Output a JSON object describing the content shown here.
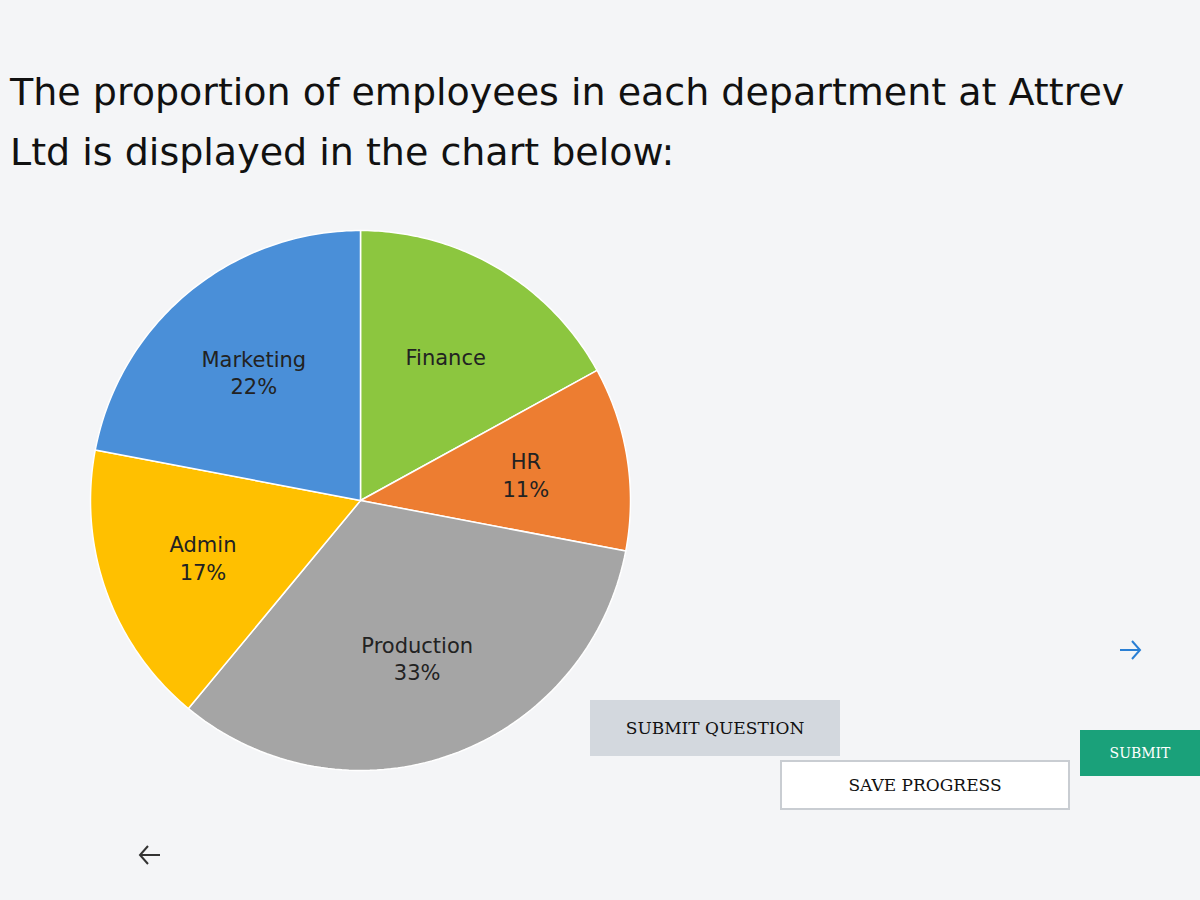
{
  "chart_data": {
    "type": "pie",
    "title": "The proportion of employees in each department at Attrev Ltd is displayed in the chart below:",
    "categories": [
      "Finance",
      "HR",
      "Production",
      "Admin",
      "Marketing"
    ],
    "values": [
      17,
      11,
      33,
      17,
      22
    ],
    "value_labels": [
      null,
      "11%",
      "33%",
      "17%",
      "22%"
    ],
    "colors": [
      "#8cc63f",
      "#ed7d31",
      "#a5a5a5",
      "#ffc000",
      "#4a8fd8"
    ],
    "data_labels": true
  },
  "buttons": [
    "SUBMIT QUESTION",
    "SAVE PROGRESS",
    "SUBMIT"
  ]
}
